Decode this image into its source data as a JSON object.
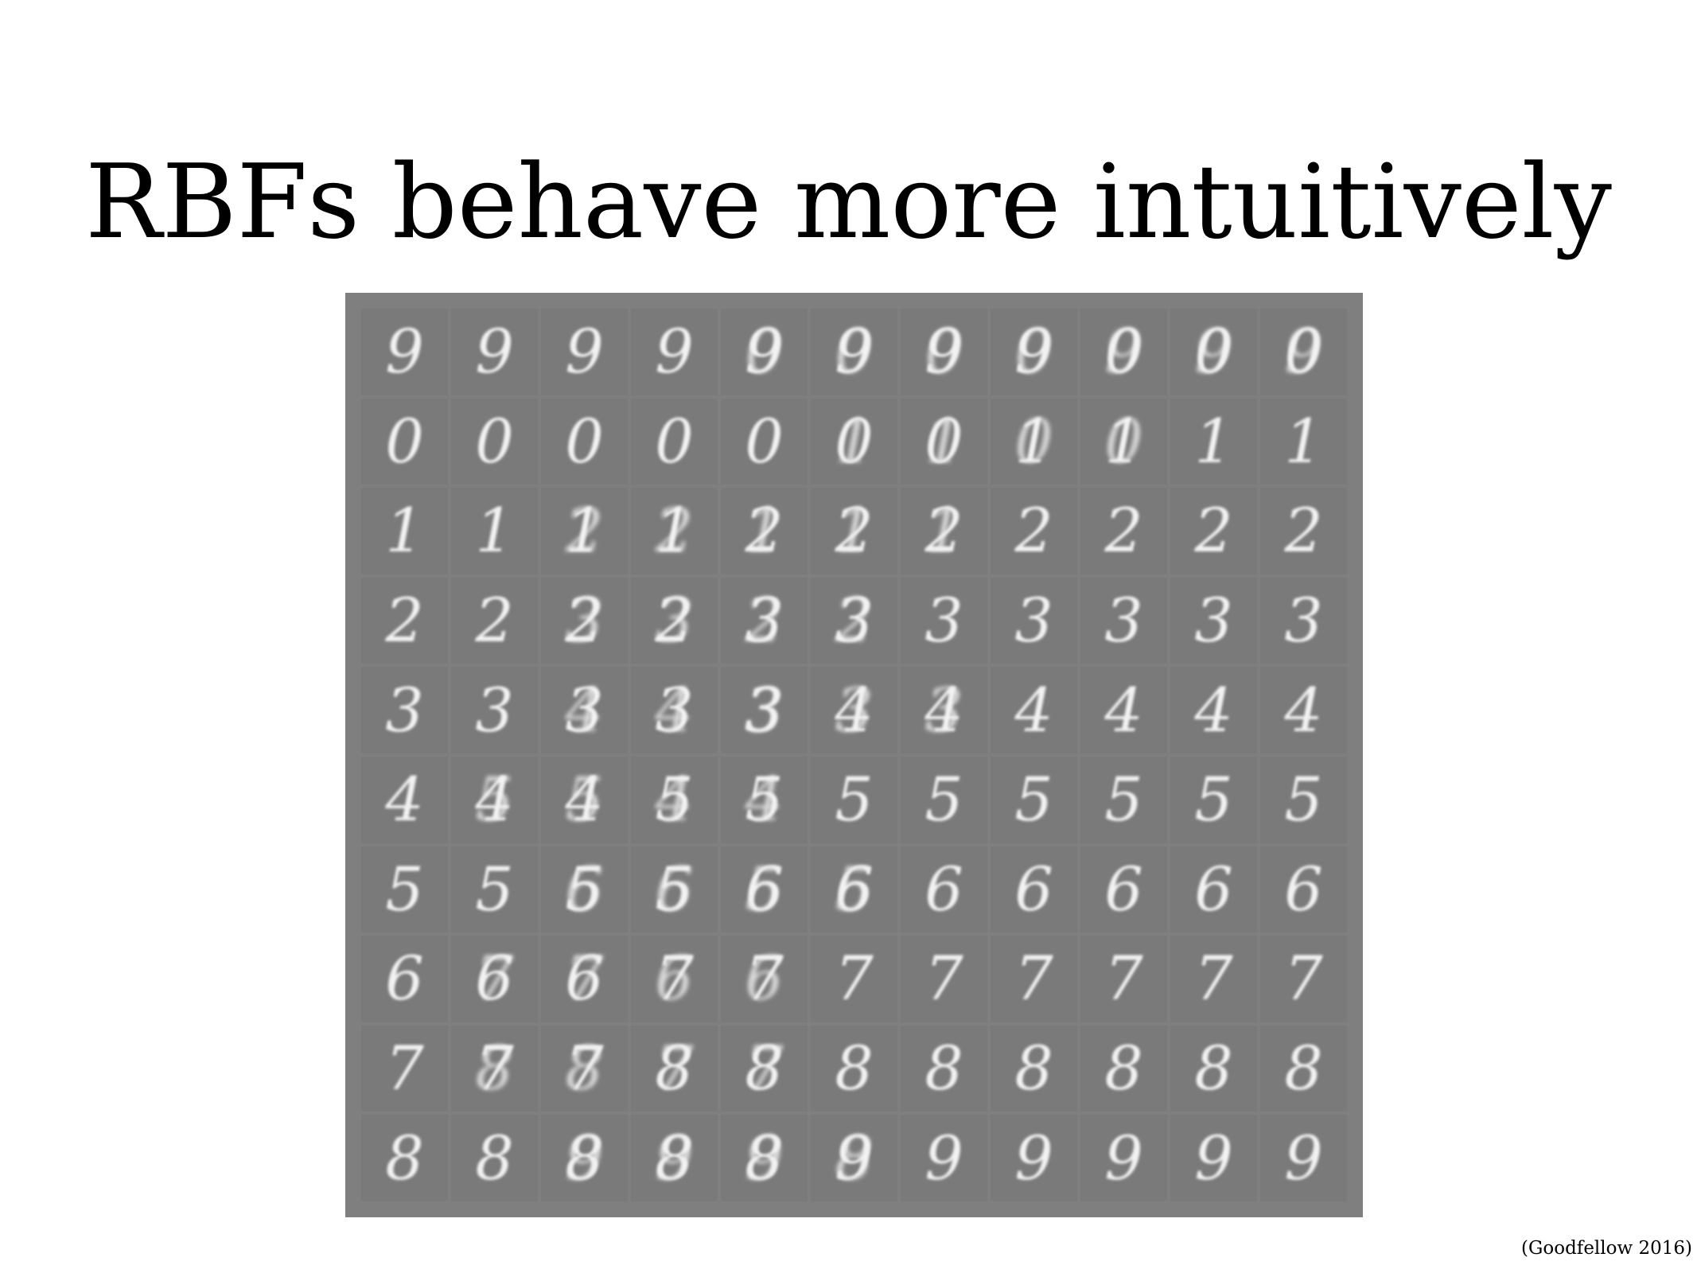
{
  "slide": {
    "title": "RBFs behave more intuitively",
    "citation": "(Goodfellow 2016)"
  },
  "figure": {
    "description_free_rows": [
      [
        "9",
        "9",
        "9",
        "9",
        "9",
        "9",
        "9",
        "9",
        "0",
        "0",
        "0"
      ],
      [
        "0",
        "0",
        "0",
        "0",
        "0",
        "0",
        "0",
        "1",
        "1",
        "1",
        "1"
      ],
      [
        "1",
        "1",
        "1",
        "1",
        "2",
        "2",
        "2",
        "2",
        "2",
        "2",
        "2"
      ],
      [
        "2",
        "2",
        "2",
        "2",
        "3",
        "3",
        "3",
        "3",
        "3",
        "3",
        "3"
      ],
      [
        "3",
        "3",
        "3",
        "3",
        "3",
        "4",
        "4",
        "4",
        "4",
        "4",
        "4"
      ],
      [
        "4",
        "4",
        "4",
        "5",
        "5",
        "5",
        "5",
        "5",
        "5",
        "5",
        "5"
      ],
      [
        "5",
        "5",
        "5",
        "5",
        "6",
        "6",
        "6",
        "6",
        "6",
        "6",
        "6"
      ],
      [
        "6",
        "6",
        "6",
        "7",
        "7",
        "7",
        "7",
        "7",
        "7",
        "7",
        "7"
      ],
      [
        "7",
        "7",
        "7",
        "8",
        "8",
        "8",
        "8",
        "8",
        "8",
        "8",
        "8"
      ],
      [
        "8",
        "8",
        "8",
        "8",
        "8",
        "9",
        "9",
        "9",
        "9",
        "9",
        "9"
      ]
    ],
    "ghost_rows": [
      [
        "",
        "",
        "",
        "",
        "0",
        "0",
        "0",
        "0",
        "9",
        "9",
        "9"
      ],
      [
        "",
        "",
        "",
        "",
        "",
        "1",
        "1",
        "0",
        "0",
        "",
        ""
      ],
      [
        "",
        "",
        "2",
        "2",
        "1",
        "1",
        "1",
        "",
        "",
        "",
        ""
      ],
      [
        "",
        "",
        "3",
        "3",
        "2",
        "2",
        "",
        "",
        "",
        "",
        ""
      ],
      [
        "",
        "",
        "4",
        "4",
        "3",
        "3",
        "3",
        "",
        "",
        "",
        ""
      ],
      [
        "",
        "5",
        "5",
        "4",
        "4",
        "",
        "",
        "",
        "",
        "",
        ""
      ],
      [
        "",
        "",
        "6",
        "6",
        "5",
        "5",
        "",
        "",
        "",
        "",
        ""
      ],
      [
        "",
        "7",
        "7",
        "6",
        "6",
        "",
        "",
        "",
        "",
        "",
        ""
      ],
      [
        "",
        "8",
        "8",
        "7",
        "7",
        "",
        "",
        "",
        "",
        "",
        ""
      ],
      [
        "",
        "",
        "9",
        "9",
        "9",
        "8",
        "",
        "",
        "",
        "",
        ""
      ]
    ]
  }
}
